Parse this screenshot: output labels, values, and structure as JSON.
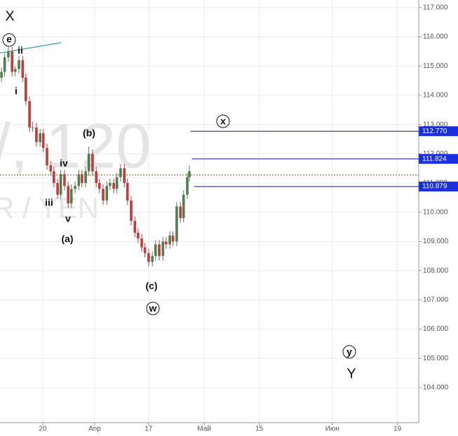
{
  "chart_data": {
    "type": "candlestick",
    "watermark": [
      "/, 120",
      "R / YEN"
    ],
    "xlim": [
      -8.08,
      71.02
    ],
    "xticks": [
      {
        "value": 0,
        "label": "20"
      },
      {
        "value": 9.8,
        "label": "Апр"
      },
      {
        "value": 20.0,
        "label": "17"
      },
      {
        "value": 30.5,
        "label": "Май"
      },
      {
        "value": 40.9,
        "label": "15"
      },
      {
        "value": 54.7,
        "label": "Июн"
      },
      {
        "value": 67.0,
        "label": "19"
      }
    ],
    "ylim": [
      102.8,
      117.26
    ],
    "yticks": [
      {
        "value": 104,
        "label": "104.000"
      },
      {
        "value": 105,
        "label": "105.000"
      },
      {
        "value": 106,
        "label": "106.000"
      },
      {
        "value": 107,
        "label": "107.000"
      },
      {
        "value": 108,
        "label": "108.000"
      },
      {
        "value": 109,
        "label": "109.000"
      },
      {
        "value": 110,
        "label": "110.000"
      },
      {
        "value": 111,
        "label": "111.000"
      },
      {
        "value": 112,
        "label": "112.000"
      },
      {
        "value": 113,
        "label": "113.000"
      },
      {
        "value": 114,
        "label": "114.000"
      },
      {
        "value": 115,
        "label": "115.000"
      },
      {
        "value": 116,
        "label": "116.000"
      },
      {
        "value": 117,
        "label": "117.000"
      }
    ],
    "grid": true,
    "up_color": "#4f7f4f",
    "down_color": "#c23b3b",
    "x": [
      -7.8,
      -7.2,
      -6.5,
      -5.8,
      -5.2,
      -4.5,
      -3.8,
      -3.2,
      -2.5,
      -1.9,
      -1.2,
      -0.5,
      0.1,
      0.8,
      1.5,
      2.1,
      2.8,
      3.4,
      4.1,
      4.8,
      5.4,
      6.1,
      6.8,
      7.4,
      8.1,
      8.7,
      9.4,
      10.1,
      10.7,
      11.4,
      12.1,
      12.7,
      13.4,
      14.0,
      14.7,
      15.4,
      16.0,
      16.7,
      17.4,
      18.0,
      18.7,
      19.3,
      20.0,
      20.7,
      21.3,
      22.0,
      22.7,
      23.3,
      24.0,
      24.6,
      25.3,
      26.0,
      26.6,
      27.3,
      27.7
    ],
    "open": [
      114.6,
      114.8,
      115.3,
      115.5,
      114.8,
      114.9,
      115.2,
      114.6,
      113.8,
      112.9,
      112.9,
      112.4,
      112.7,
      112.2,
      111.6,
      111.4,
      111.0,
      110.6,
      111.3,
      110.9,
      110.3,
      110.8,
      110.9,
      111.3,
      111.0,
      111.4,
      112.0,
      111.4,
      111.0,
      110.8,
      110.4,
      110.9,
      111.0,
      110.8,
      111.2,
      111.5,
      111.0,
      110.4,
      109.7,
      109.3,
      109.1,
      108.8,
      108.6,
      108.3,
      108.5,
      108.9,
      108.5,
      109.0,
      108.9,
      109.2,
      109.0,
      110.2,
      109.8,
      110.6,
      111.2
    ],
    "high": [
      114.95,
      115.45,
      115.65,
      115.65,
      115.0,
      115.35,
      115.35,
      114.75,
      113.95,
      113.1,
      113.05,
      112.85,
      112.85,
      112.35,
      111.75,
      111.55,
      111.15,
      111.45,
      111.45,
      111.05,
      110.95,
      111.05,
      111.45,
      111.45,
      111.55,
      112.25,
      112.15,
      111.55,
      111.15,
      110.95,
      111.05,
      111.15,
      111.15,
      111.35,
      111.65,
      111.65,
      111.15,
      110.55,
      109.85,
      109.45,
      109.25,
      108.95,
      108.75,
      108.65,
      109.05,
      109.05,
      109.15,
      109.15,
      109.35,
      109.35,
      110.35,
      110.35,
      110.75,
      111.35,
      111.6
    ],
    "low": [
      114.45,
      114.65,
      115.15,
      114.65,
      114.65,
      114.75,
      114.45,
      113.65,
      112.75,
      112.75,
      112.25,
      112.25,
      112.05,
      111.45,
      111.25,
      110.85,
      110.45,
      110.45,
      110.75,
      110.15,
      110.15,
      110.65,
      110.75,
      110.85,
      110.85,
      111.25,
      111.25,
      110.85,
      110.65,
      110.25,
      110.25,
      110.75,
      110.65,
      110.65,
      111.05,
      110.85,
      110.25,
      109.55,
      109.15,
      108.95,
      108.65,
      108.45,
      108.15,
      108.15,
      108.35,
      108.35,
      108.35,
      108.75,
      108.75,
      108.85,
      108.85,
      109.65,
      109.65,
      110.45,
      111.05
    ],
    "close": [
      114.8,
      115.3,
      115.5,
      114.8,
      114.9,
      115.2,
      114.6,
      113.8,
      112.9,
      112.9,
      112.4,
      112.7,
      112.2,
      111.6,
      111.4,
      111.0,
      110.6,
      111.3,
      110.9,
      110.3,
      110.8,
      110.9,
      111.3,
      111.0,
      111.4,
      112.0,
      111.4,
      111.0,
      110.8,
      110.4,
      110.9,
      111.0,
      110.8,
      111.2,
      111.5,
      111.0,
      110.4,
      109.7,
      109.3,
      109.1,
      108.8,
      108.6,
      108.3,
      108.5,
      108.9,
      108.5,
      109.0,
      108.9,
      109.2,
      109.0,
      110.2,
      109.8,
      110.6,
      111.2,
      111.4
    ],
    "current_price": 111.27,
    "current_color": "#c0392b",
    "levels": [
      {
        "value": 112.77,
        "label": "112.770",
        "start": 27.9
      },
      {
        "value": 111.824,
        "label": "111.824",
        "start": 28.2
      },
      {
        "value": 110.879,
        "label": "110.879",
        "start": 28.6
      }
    ],
    "level_color": "#0c1a7a",
    "level_box_color": "#1a2fe0",
    "trendline": {
      "x": [
        -8.08,
        3.45
      ],
      "y": [
        115.45,
        115.8
      ],
      "color": "#3aa39a"
    },
    "annotations": [
      "X",
      "e",
      "ii",
      "i",
      "(b)",
      "iv",
      "iii",
      "v",
      "(a)",
      "(c)",
      "w",
      "x",
      "y",
      "Y"
    ]
  }
}
